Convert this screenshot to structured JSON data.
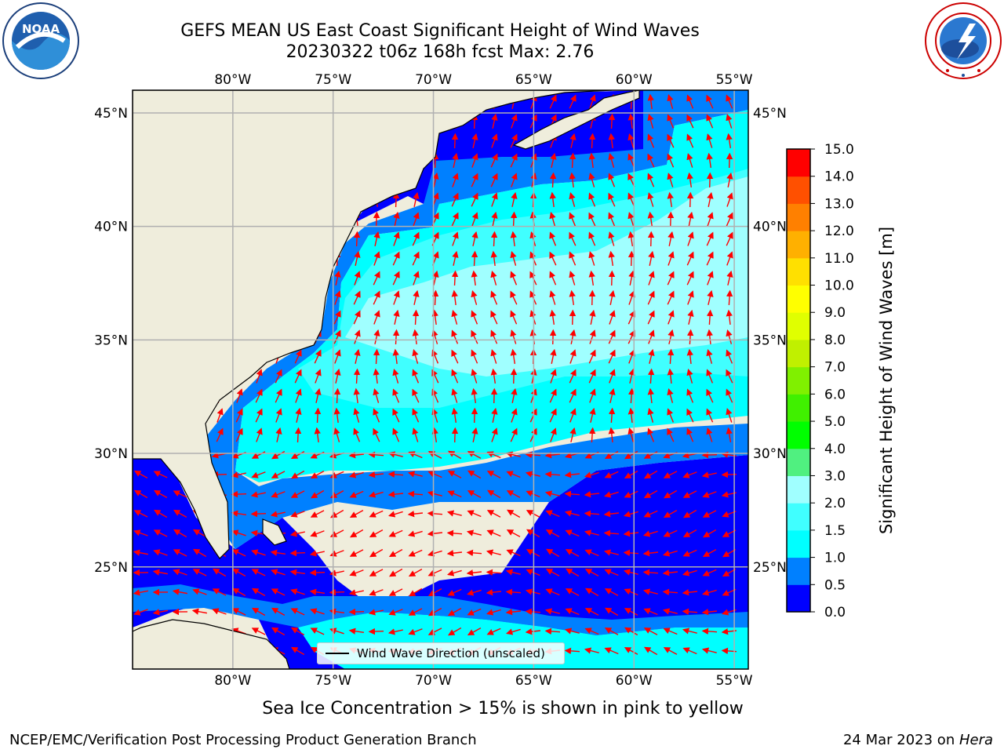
{
  "header": {
    "title_line1": "GEFS MEAN US East Coast Significant Height of Wind Waves",
    "title_line2": "20230322 t06z 168h fcst   Max: 2.76"
  },
  "logos": {
    "noaa": {
      "icon": "noaa-logo-icon",
      "text": "NOAA",
      "ring_text": "NATIONAL OCEANIC AND ATMOSPHERIC ADMINISTRATION · U.S. DEPARTMENT OF COMMERCE"
    },
    "nws": {
      "icon": "nws-logo-icon",
      "ring_text": "NATIONAL WEATHER SERVICE"
    }
  },
  "map": {
    "lon_labels": [
      "80°W",
      "75°W",
      "70°W",
      "65°W",
      "60°W",
      "55°W"
    ],
    "lat_labels_left": [
      "45°N",
      "40°N",
      "35°N",
      "30°N",
      "25°N"
    ],
    "lat_labels_right": [
      "45°N",
      "40°N",
      "35°N",
      "30°N",
      "25°N"
    ],
    "lon_values": [
      -80,
      -75,
      -70,
      -65,
      -60,
      -55
    ],
    "lat_values": [
      45,
      40,
      35,
      30,
      25
    ],
    "extent": {
      "lon_min": -85,
      "lon_max": -54.3,
      "lat_min": 20.5,
      "lat_max": 46
    },
    "grid": true,
    "land_color": "#efeddc",
    "legend_label": "Wind Wave Direction (unscaled)",
    "arrow_color": "#ff0000",
    "ice_colors": [
      "#ff66cc",
      "#ffff00"
    ]
  },
  "colorbar": {
    "title": "Significant Height of Wind Waves [m]",
    "ticks": [
      "0.0",
      "0.5",
      "1.0",
      "1.5",
      "2.0",
      "3.0",
      "4.0",
      "5.0",
      "6.0",
      "7.0",
      "8.0",
      "9.0",
      "10.0",
      "11.0",
      "12.0",
      "13.0",
      "14.0",
      "15.0"
    ],
    "colors": [
      "#0000ff",
      "#0080ff",
      "#00ffff",
      "#40ffff",
      "#a0ffff",
      "#50f080",
      "#00ff00",
      "#40f000",
      "#80f000",
      "#c0f000",
      "#e0ff00",
      "#ffff00",
      "#ffe000",
      "#ffb000",
      "#ff8000",
      "#ff5000",
      "#ff0000"
    ]
  },
  "chart_data": {
    "type": "heatmap",
    "title": "GEFS MEAN US East Coast Significant Height of Wind Waves",
    "subtitle": "20230322 t06z 168h fcst   Max: 2.76",
    "units": "m",
    "max_value": 2.76,
    "levels": [
      0.0,
      0.5,
      1.0,
      1.5,
      2.0,
      3.0,
      4.0,
      5.0,
      6.0,
      7.0,
      8.0,
      9.0,
      10.0,
      11.0,
      12.0,
      13.0,
      14.0,
      15.0
    ],
    "regions": [
      {
        "lat_range": [
          41,
          46
        ],
        "lon_range": [
          -71,
          -54.3
        ],
        "value_range": [
          0.5,
          2.0
        ]
      },
      {
        "lat_range": [
          32,
          41
        ],
        "lon_range": [
          -76,
          -54.3
        ],
        "value_range": [
          1.5,
          2.76
        ]
      },
      {
        "lat_range": [
          29,
          32
        ],
        "lon_range": [
          -80,
          -54.3
        ],
        "value_range": [
          1.0,
          1.5
        ]
      },
      {
        "lat_range": [
          20.5,
          29
        ],
        "lon_range": [
          -85,
          -54.3
        ],
        "value_range": [
          0.0,
          1.0
        ]
      }
    ]
  },
  "footer": {
    "ice_note": "Sea Ice Concentration > 15% is shown in pink to yellow",
    "credit": "NCEP/EMC/Verification Post Processing Product Generation Branch",
    "date": "24 Mar 2023 on ",
    "machine": "Hera"
  }
}
